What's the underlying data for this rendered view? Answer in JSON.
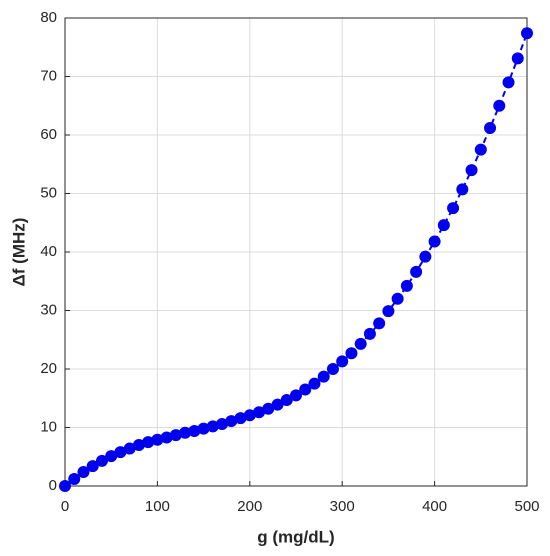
{
  "chart_data": {
    "type": "scatter",
    "x_label": "g (mg/dL)",
    "y_label": "Δf (MHz)",
    "x": [
      0,
      10,
      20,
      30,
      40,
      50,
      60,
      70,
      80,
      90,
      100,
      110,
      120,
      130,
      140,
      150,
      160,
      170,
      180,
      190,
      200,
      210,
      220,
      230,
      240,
      250,
      260,
      270,
      280,
      290,
      300,
      310,
      320,
      330,
      340,
      350,
      360,
      370,
      380,
      390,
      400,
      410,
      420,
      430,
      440,
      450,
      460,
      470,
      480,
      490,
      500
    ],
    "series": [
      {
        "color": "#0000ee",
        "line_style": "dashed",
        "values": [
          0,
          1.2,
          2.4,
          3.4,
          4.3,
          5.1,
          5.8,
          6.4,
          7.0,
          7.5,
          7.9,
          8.3,
          8.7,
          9.1,
          9.4,
          9.8,
          10.2,
          10.6,
          11.1,
          11.6,
          12.1,
          12.6,
          13.2,
          13.9,
          14.7,
          15.5,
          16.5,
          17.5,
          18.7,
          20.0,
          21.3,
          22.7,
          24.3,
          26.0,
          27.8,
          29.9,
          32.0,
          34.2,
          36.6,
          39.2,
          41.8,
          44.6,
          47.5,
          50.7,
          54.0,
          57.5,
          61.2,
          65.0,
          69.0,
          73.1,
          77.4
        ]
      }
    ],
    "xlim": [
      0,
      500
    ],
    "xticks": [
      0,
      100,
      200,
      300,
      400,
      500
    ],
    "ylim": [
      0,
      80
    ],
    "yticks": [
      0,
      10,
      20,
      30,
      40,
      50,
      60,
      70,
      80
    ],
    "grid": true
  }
}
